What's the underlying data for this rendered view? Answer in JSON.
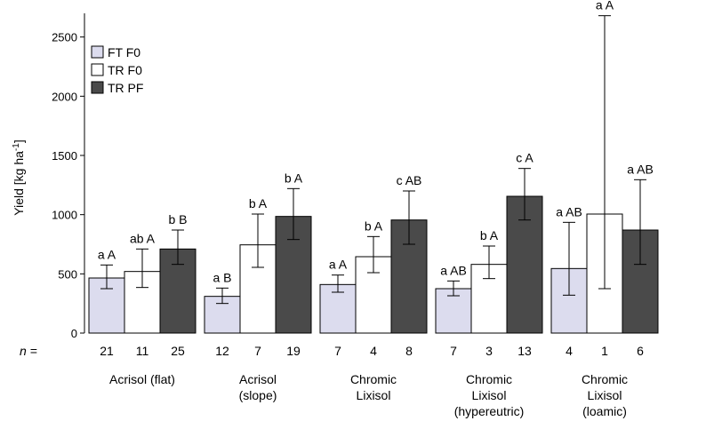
{
  "chart_data": {
    "type": "bar",
    "ylabel": "Yield [kg ha",
    "ylabel_sup": "-1",
    "ylabel_end": "]",
    "ylim": [
      0,
      2700
    ],
    "yticks": [
      0,
      500,
      1000,
      1500,
      2000,
      2500
    ],
    "grid": false,
    "legend_position": "top-left",
    "n_label": "n",
    "n_eq": " =",
    "colors": [
      "#dcdcee",
      "#ffffff",
      "#4a4a4a"
    ],
    "categories": [
      [
        "Acrisol (flat)"
      ],
      [
        "Acrisol",
        "(slope)"
      ],
      [
        "Chromic",
        "Lixisol"
      ],
      [
        "Chromic",
        "Lixisol",
        "(hypereutric)"
      ],
      [
        "Chromic",
        "Lixisol",
        "(loamic)"
      ]
    ],
    "series": [
      {
        "name": "FT F0",
        "values": [
          465,
          310,
          410,
          375,
          545
        ],
        "err_low": [
          375,
          250,
          345,
          315,
          320
        ],
        "err_high": [
          575,
          380,
          490,
          440,
          935
        ],
        "labels": [
          "a A",
          "a B",
          "a A",
          "a AB",
          "a AB"
        ],
        "n": [
          "21",
          "12",
          "7",
          "7",
          "4"
        ]
      },
      {
        "name": "TR F0",
        "values": [
          520,
          745,
          645,
          580,
          1005
        ],
        "err_low": [
          385,
          555,
          510,
          460,
          375
        ],
        "err_high": [
          710,
          1005,
          815,
          735,
          2680
        ],
        "labels": [
          "ab A",
          "b A",
          "b A",
          "b A",
          "a A"
        ],
        "n": [
          "11",
          "7",
          "4",
          "3",
          "1"
        ]
      },
      {
        "name": "TR PF",
        "values": [
          710,
          985,
          955,
          1155,
          870
        ],
        "err_low": [
          580,
          790,
          750,
          955,
          580
        ],
        "err_high": [
          870,
          1220,
          1200,
          1390,
          1295
        ],
        "labels": [
          "b B",
          "b A",
          "c AB",
          "c A",
          "a AB"
        ],
        "n": [
          "25",
          "19",
          "8",
          "13",
          "6"
        ]
      }
    ]
  }
}
